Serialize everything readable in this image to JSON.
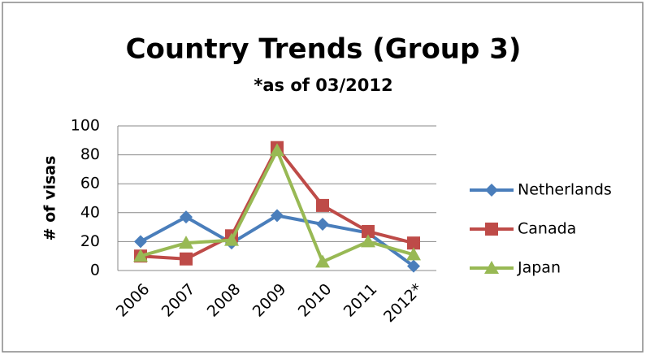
{
  "chart_data": {
    "type": "line",
    "title": "Country Trends (Group 3)",
    "subtitle": "*as of 03/2012",
    "y_label": "# of visas",
    "categories": [
      "2006",
      "2007",
      "2008",
      "2009",
      "2010",
      "2011",
      "2012*"
    ],
    "series": [
      {
        "name": "Netherlands",
        "color": "#4a7ebb",
        "marker": "diamond",
        "values": [
          20,
          37,
          19,
          38,
          32,
          26,
          3
        ]
      },
      {
        "name": "Canada",
        "color": "#be4b48",
        "marker": "square",
        "values": [
          10,
          8,
          24,
          85,
          45,
          27,
          19
        ]
      },
      {
        "name": "Japan",
        "color": "#98b954",
        "marker": "triangle",
        "values": [
          10,
          19,
          21,
          83,
          6,
          20,
          11
        ]
      }
    ],
    "ylim": [
      0,
      100
    ],
    "yticks": [
      0,
      20,
      40,
      60,
      80,
      100
    ],
    "grid": true,
    "legend": "right"
  }
}
